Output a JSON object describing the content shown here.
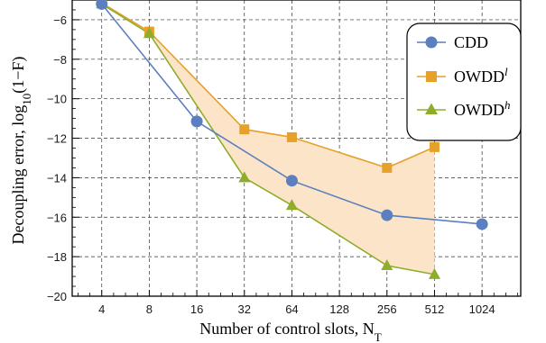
{
  "chart_data": {
    "type": "line",
    "xlabel": "Number of control slots, N",
    "xlabel_sub": "T",
    "ylabel_parts": [
      "Decoupling error, log",
      "10",
      "(1−F)"
    ],
    "x_scale": "log2",
    "x_ticks": [
      4,
      8,
      16,
      32,
      64,
      128,
      256,
      512,
      1024
    ],
    "x_tick_labels": [
      "4",
      "8",
      "16",
      "32",
      "64",
      "128",
      "256",
      "512",
      "1024"
    ],
    "xlim": [
      2.6,
      1800
    ],
    "ylim": [
      -20,
      -5
    ],
    "y_ticks": [
      -6,
      -8,
      -10,
      -12,
      -14,
      -16,
      -18,
      -20
    ],
    "y_tick_labels": [
      "−6",
      "−8",
      "−10",
      "−12",
      "−14",
      "−16",
      "−18",
      "−20"
    ],
    "grid": true,
    "grid_style": "dashed",
    "legend_position": "top-right",
    "shaded_region": {
      "between": [
        "OWDD^l",
        "OWDD^h"
      ],
      "color": "#fbe4c8"
    },
    "series": [
      {
        "name": "CDD",
        "name_base": "CDD",
        "name_sup": "",
        "marker": "circle",
        "color": "#5b7fbf",
        "x": [
          4,
          16,
          64,
          256,
          1024
        ],
        "y": [
          -5.2,
          -11.15,
          -14.15,
          -15.9,
          -16.35
        ]
      },
      {
        "name": "OWDD^l",
        "name_base": "OWDD",
        "name_sup": "l",
        "marker": "square",
        "color": "#e5a12a",
        "x": [
          4,
          8,
          32,
          64,
          256,
          512
        ],
        "y": [
          -5.15,
          -6.6,
          -11.55,
          -11.95,
          -13.5,
          -12.45
        ]
      },
      {
        "name": "OWDD^h",
        "name_base": "OWDD",
        "name_sup": "h",
        "marker": "triangle",
        "color": "#8fad2a",
        "x": [
          4,
          8,
          32,
          64,
          256,
          512
        ],
        "y": [
          -5.2,
          -6.7,
          -14.0,
          -15.4,
          -18.45,
          -18.9
        ]
      }
    ]
  }
}
